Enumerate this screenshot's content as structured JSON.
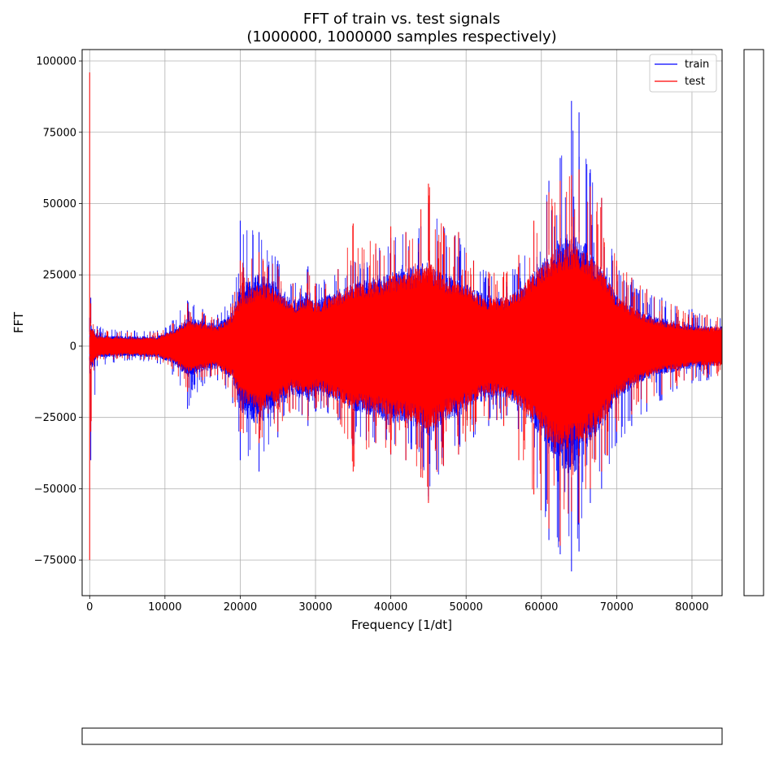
{
  "chart_data": {
    "type": "line",
    "title": "FFT of train vs. test signals",
    "subtitle": "(1000000, 1000000 samples respectively)",
    "xlabel": "Frequency [1/dt]",
    "ylabel": "FFT",
    "xlim": [
      -1000,
      84000
    ],
    "ylim": [
      -87500,
      104000
    ],
    "xticks": [
      0,
      10000,
      20000,
      30000,
      40000,
      50000,
      60000,
      70000,
      80000
    ],
    "xtick_labels": [
      "0",
      "10000",
      "20000",
      "30000",
      "40000",
      "50000",
      "60000",
      "70000",
      "80000"
    ],
    "yticks": [
      -75000,
      -50000,
      -25000,
      0,
      25000,
      50000,
      75000,
      100000
    ],
    "ytick_labels": [
      "−75000",
      "−50000",
      "−25000",
      "0",
      "25000",
      "50000",
      "75000",
      "100000"
    ],
    "grid": true,
    "legend_position": "top-right",
    "series": [
      {
        "name": "train",
        "color": "#0000ff",
        "envelope": {
          "x": [
            0,
            150,
            1000,
            5000,
            9000,
            11000,
            13000,
            15000,
            17000,
            19000,
            20000,
            22500,
            25000,
            27000,
            29000,
            30000,
            33000,
            35000,
            38000,
            40000,
            42000,
            44000,
            45000,
            47000,
            49000,
            51000,
            53000,
            55000,
            57000,
            59000,
            61000,
            62500,
            64000,
            65000,
            66500,
            68000,
            70000,
            72000,
            74000,
            76000,
            78000,
            80000,
            82000,
            84000
          ],
          "upper": [
            10000,
            17000,
            7000,
            5500,
            5500,
            9000,
            16000,
            13000,
            11000,
            18000,
            44000,
            40000,
            30000,
            22000,
            28000,
            22000,
            27000,
            30000,
            34000,
            38000,
            40000,
            42000,
            50000,
            42000,
            40000,
            30000,
            26000,
            24000,
            30000,
            40000,
            58000,
            66000,
            86000,
            82000,
            62000,
            52000,
            28000,
            24000,
            20000,
            17000,
            14000,
            13000,
            11000,
            10000
          ],
          "lower": [
            -5000,
            -40000,
            -7000,
            -5000,
            -6000,
            -10000,
            -22000,
            -14000,
            -12000,
            -20000,
            -40000,
            -44000,
            -32000,
            -22000,
            -28000,
            -23000,
            -26000,
            -35000,
            -34000,
            -38000,
            -40000,
            -43000,
            -54000,
            -42000,
            -38000,
            -32000,
            -28000,
            -26000,
            -33000,
            -45000,
            -68000,
            -73000,
            -79000,
            -72000,
            -55000,
            -50000,
            -34000,
            -28000,
            -23000,
            -19000,
            -15000,
            -13000,
            -12000,
            -11000
          ],
          "fill_upper": [
            5000,
            8000,
            4000,
            3500,
            3500,
            6000,
            10000,
            9000,
            8000,
            12000,
            22000,
            26000,
            22000,
            16000,
            20000,
            16000,
            20000,
            22000,
            25000,
            26000,
            28000,
            29000,
            30000,
            26000,
            24000,
            20000,
            18000,
            17000,
            20000,
            26000,
            34000,
            38000,
            42000,
            40000,
            34000,
            28000,
            18000,
            14000,
            12000,
            10000,
            9000,
            8000,
            7000,
            7000
          ],
          "fill_lower": [
            -4000,
            -9000,
            -4000,
            -3500,
            -4000,
            -6000,
            -11000,
            -9000,
            -8000,
            -12000,
            -24000,
            -28000,
            -22000,
            -17000,
            -20000,
            -17000,
            -20000,
            -23000,
            -25000,
            -27000,
            -28000,
            -30000,
            -32000,
            -27000,
            -25000,
            -21000,
            -19000,
            -18000,
            -21000,
            -28000,
            -38000,
            -42000,
            -46000,
            -42000,
            -34000,
            -29000,
            -19000,
            -15000,
            -12000,
            -10000,
            -9000,
            -8000,
            -7000,
            -7000
          ]
        }
      },
      {
        "name": "test",
        "color": "#ff0000",
        "envelope": {
          "x": [
            0,
            150,
            1000,
            5000,
            9000,
            11000,
            13000,
            15000,
            17000,
            19000,
            20000,
            22500,
            25000,
            27000,
            29000,
            30000,
            33000,
            35000,
            38000,
            40000,
            42000,
            44000,
            45000,
            47000,
            49000,
            51000,
            53000,
            55000,
            57000,
            59000,
            61000,
            62500,
            64000,
            65000,
            66500,
            68000,
            70000,
            72000,
            74000,
            76000,
            78000,
            80000,
            82000,
            84000
          ],
          "upper": [
            96000,
            15000,
            6000,
            5000,
            5000,
            8000,
            15000,
            12000,
            10000,
            15000,
            30000,
            33000,
            28000,
            22000,
            26000,
            22000,
            27000,
            43000,
            36000,
            42000,
            40000,
            48000,
            57000,
            42000,
            40000,
            30000,
            26000,
            26000,
            32000,
            44000,
            54000,
            58000,
            60000,
            62000,
            56000,
            52000,
            30000,
            24000,
            20000,
            16000,
            14000,
            12000,
            11000,
            11000
          ],
          "lower": [
            -75000,
            -30000,
            -5000,
            -4500,
            -5000,
            -8000,
            -16000,
            -12000,
            -10000,
            -18000,
            -30000,
            -34000,
            -30000,
            -22000,
            -26000,
            -22000,
            -25000,
            -44000,
            -34000,
            -38000,
            -40000,
            -46000,
            -55000,
            -42000,
            -38000,
            -30000,
            -26000,
            -28000,
            -40000,
            -52000,
            -64000,
            -70000,
            -58000,
            -62000,
            -50000,
            -44000,
            -30000,
            -24000,
            -20000,
            -17000,
            -14000,
            -12000,
            -11000,
            -11000
          ],
          "fill_upper": [
            4000,
            7000,
            3500,
            3000,
            3000,
            5500,
            9000,
            8000,
            7000,
            11000,
            18000,
            22000,
            20000,
            15000,
            18000,
            15000,
            19000,
            22000,
            23000,
            25000,
            26000,
            28000,
            30000,
            25000,
            23000,
            19000,
            17000,
            17000,
            20000,
            26000,
            32000,
            35000,
            36000,
            36000,
            32000,
            27000,
            18000,
            14000,
            11000,
            9000,
            8000,
            7000,
            7000,
            7000
          ],
          "fill_lower": [
            -3500,
            -8000,
            -3500,
            -3000,
            -3500,
            -5500,
            -9500,
            -8000,
            -7000,
            -11000,
            -19000,
            -23000,
            -20000,
            -15000,
            -18000,
            -15000,
            -19000,
            -22000,
            -23000,
            -25000,
            -26000,
            -28000,
            -31000,
            -25000,
            -23000,
            -19000,
            -17000,
            -18000,
            -21000,
            -27000,
            -34000,
            -37000,
            -36000,
            -36000,
            -31000,
            -27000,
            -18000,
            -14000,
            -11000,
            -9000,
            -8000,
            -7000,
            -7000,
            -7000
          ]
        }
      }
    ]
  }
}
